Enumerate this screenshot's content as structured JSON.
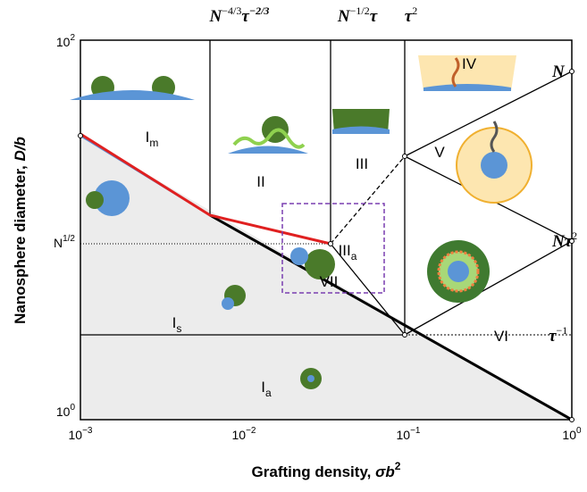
{
  "x_axis": {
    "label": "Grafting density, ",
    "label_sym": "σb",
    "label_sup": "2",
    "ticks": [
      {
        "base": "10",
        "sup": "−3"
      },
      {
        "base": "10",
        "sup": "−2"
      },
      {
        "base": "10",
        "sup": "−1"
      },
      {
        "base": "10",
        "sup": "0"
      }
    ]
  },
  "y_axis": {
    "label": "Nanosphere diameter, ",
    "label_sym": "D/b",
    "ticks": [
      {
        "base": "10",
        "sup": "2"
      },
      {
        "base": "N",
        "sup": "1/2"
      },
      {
        "base": "10",
        "sup": "0"
      }
    ]
  },
  "top_labels": [
    {
      "base": "N",
      "sup": "−4/3",
      "base2": "τ",
      "sup2": "−2/3"
    },
    {
      "base": "N",
      "sup": "−1/2",
      "base2": "τ",
      "sup2": ""
    },
    {
      "base": "τ",
      "sup": "2",
      "base2": "",
      "sup2": ""
    }
  ],
  "right_labels": [
    {
      "base": "N",
      "sup": ""
    },
    {
      "base": "Nτ",
      "sup": "2"
    },
    {
      "base": "τ",
      "sup": "−1"
    }
  ],
  "regions": [
    {
      "base": "I",
      "sub": "m"
    },
    {
      "base": "II",
      "sub": ""
    },
    {
      "base": "III",
      "sub": ""
    },
    {
      "base": "III",
      "sub": "a"
    },
    {
      "base": "VII",
      "sub": ""
    },
    {
      "base": "I",
      "sub": "s"
    },
    {
      "base": "I",
      "sub": "a"
    },
    {
      "base": "IV",
      "sub": ""
    },
    {
      "base": "V",
      "sub": ""
    },
    {
      "base": "VI",
      "sub": ""
    }
  ]
}
